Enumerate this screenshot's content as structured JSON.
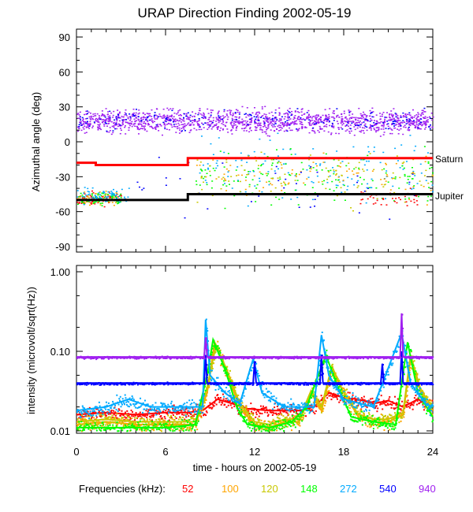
{
  "chart_data": [
    {
      "type": "scatter",
      "title": "URAP Direction Finding  2002-05-19",
      "ylabel": "Azimuthal angle (deg)",
      "ylim": [
        -95,
        95
      ],
      "xlim": [
        0,
        24
      ],
      "yticks": [
        "90",
        "60",
        "30",
        "0",
        "-30",
        "-60",
        "-90"
      ],
      "ytick_values": [
        90,
        60,
        30,
        0,
        -30,
        -60,
        -90
      ],
      "reference_lines": [
        {
          "name": "Saturn",
          "color": "#ff0000",
          "points": [
            [
              0,
              -18
            ],
            [
              1.3,
              -18
            ],
            [
              1.3,
              -20
            ],
            [
              7.5,
              -20
            ],
            [
              7.5,
              -14
            ],
            [
              24,
              -14
            ]
          ]
        },
        {
          "name": "Jupiter",
          "color": "#000000",
          "points": [
            [
              0,
              -50
            ],
            [
              7.5,
              -50
            ],
            [
              7.5,
              -45
            ],
            [
              24,
              -45
            ]
          ]
        }
      ],
      "clusters": [
        {
          "freq": "940",
          "t": [
            0,
            24
          ],
          "center": 18,
          "spread": 7,
          "count": 1400
        },
        {
          "freq": "540",
          "t": [
            0,
            24
          ],
          "center": 19,
          "spread": 6,
          "count": 200
        },
        {
          "freq": "52",
          "t": [
            0,
            3
          ],
          "center": -48,
          "spread": 4,
          "count": 60
        },
        {
          "freq": "100",
          "t": [
            0,
            3
          ],
          "center": -48,
          "spread": 4,
          "count": 60
        },
        {
          "freq": "148",
          "t": [
            0,
            3
          ],
          "center": -48,
          "spread": 4,
          "count": 70
        },
        {
          "freq": "272",
          "t": [
            0,
            3.5
          ],
          "center": -46,
          "spread": 5,
          "count": 70
        },
        {
          "freq": "272",
          "t": [
            8,
            24
          ],
          "center": -25,
          "spread": 18,
          "count": 150
        },
        {
          "freq": "148",
          "t": [
            8,
            24
          ],
          "center": -30,
          "spread": 16,
          "count": 150
        },
        {
          "freq": "100",
          "t": [
            8,
            24
          ],
          "center": -30,
          "spread": 16,
          "count": 100
        },
        {
          "freq": "120",
          "t": [
            8,
            24
          ],
          "center": -30,
          "spread": 16,
          "count": 100
        },
        {
          "freq": "52",
          "t": [
            19,
            23
          ],
          "center": -48,
          "spread": 5,
          "count": 40
        },
        {
          "freq": "540",
          "t": [
            4,
            24
          ],
          "center": -40,
          "spread": 20,
          "count": 40
        }
      ]
    },
    {
      "type": "line",
      "ylabel": "intensity (microvolt/sqrt(Hz))",
      "xlabel": "time - hours on 2002-05-19",
      "yscale": "log",
      "ylim": [
        0.01,
        1.0
      ],
      "xlim": [
        0,
        24
      ],
      "yticks": [
        "1.00",
        "0.10",
        "0.01"
      ],
      "ytick_values": [
        1.0,
        0.1,
        0.01
      ],
      "xticks": [
        "0",
        "6",
        "12",
        "18",
        "24"
      ],
      "xtick_values": [
        0,
        6,
        12,
        18,
        24
      ],
      "legend_title": "Frequencies (kHz):",
      "series": [
        {
          "name": "52",
          "color": "#ff0000",
          "points": [
            [
              0,
              0.016
            ],
            [
              2,
              0.017
            ],
            [
              4,
              0.016
            ],
            [
              6,
              0.017
            ],
            [
              7.5,
              0.017
            ],
            [
              8.5,
              0.018
            ],
            [
              9.5,
              0.025
            ],
            [
              10.5,
              0.022
            ],
            [
              11.5,
              0.019
            ],
            [
              13,
              0.018
            ],
            [
              15,
              0.018
            ],
            [
              16,
              0.02
            ],
            [
              17,
              0.03
            ],
            [
              18,
              0.026
            ],
            [
              19,
              0.025
            ],
            [
              20,
              0.022
            ],
            [
              21,
              0.024
            ],
            [
              22,
              0.02
            ],
            [
              23,
              0.025
            ],
            [
              24,
              0.02
            ]
          ]
        },
        {
          "name": "100",
          "color": "#ffa500",
          "points": [
            [
              0,
              0.012
            ],
            [
              2,
              0.013
            ],
            [
              4,
              0.012
            ],
            [
              6,
              0.012
            ],
            [
              8,
              0.012
            ],
            [
              8.8,
              0.03
            ],
            [
              9.3,
              0.13
            ],
            [
              10,
              0.06
            ],
            [
              11,
              0.02
            ],
            [
              12,
              0.012
            ],
            [
              13,
              0.011
            ],
            [
              14,
              0.013
            ],
            [
              15,
              0.013
            ],
            [
              15.8,
              0.03
            ],
            [
              16.5,
              0.018
            ],
            [
              17.2,
              0.06
            ],
            [
              18,
              0.03
            ],
            [
              19,
              0.015
            ],
            [
              20,
              0.013
            ],
            [
              21,
              0.013
            ],
            [
              22,
              0.016
            ],
            [
              22.5,
              0.08
            ],
            [
              23.2,
              0.03
            ],
            [
              24,
              0.018
            ]
          ]
        },
        {
          "name": "120",
          "color": "#c8c800",
          "points": [
            [
              0,
              0.013
            ],
            [
              2,
              0.014
            ],
            [
              4,
              0.013
            ],
            [
              6,
              0.013
            ],
            [
              8,
              0.013
            ],
            [
              8.8,
              0.035
            ],
            [
              9.4,
              0.12
            ],
            [
              10.1,
              0.06
            ],
            [
              11,
              0.022
            ],
            [
              12,
              0.013
            ],
            [
              13,
              0.012
            ],
            [
              14,
              0.014
            ],
            [
              15,
              0.014
            ],
            [
              15.8,
              0.032
            ],
            [
              16.5,
              0.02
            ],
            [
              17.2,
              0.065
            ],
            [
              18,
              0.03
            ],
            [
              19,
              0.016
            ],
            [
              20,
              0.014
            ],
            [
              21,
              0.014
            ],
            [
              22,
              0.017
            ],
            [
              22.5,
              0.09
            ],
            [
              23.2,
              0.032
            ],
            [
              24,
              0.02
            ]
          ]
        },
        {
          "name": "148",
          "color": "#00ff00",
          "points": [
            [
              0,
              0.011
            ],
            [
              3,
              0.011
            ],
            [
              6,
              0.011
            ],
            [
              8,
              0.012
            ],
            [
              8.8,
              0.05
            ],
            [
              9.2,
              0.14
            ],
            [
              10,
              0.06
            ],
            [
              10.8,
              0.02
            ],
            [
              11.5,
              0.012
            ],
            [
              13,
              0.011
            ],
            [
              14.5,
              0.013
            ],
            [
              15.5,
              0.02
            ],
            [
              16.8,
              0.09
            ],
            [
              17.5,
              0.04
            ],
            [
              18.5,
              0.015
            ],
            [
              20,
              0.013
            ],
            [
              21.5,
              0.012
            ],
            [
              22.3,
              0.13
            ],
            [
              23,
              0.03
            ],
            [
              24,
              0.015
            ]
          ]
        },
        {
          "name": "272",
          "color": "#00aaff",
          "points": [
            [
              0,
              0.018
            ],
            [
              2,
              0.02
            ],
            [
              3.5,
              0.025
            ],
            [
              5,
              0.02
            ],
            [
              7,
              0.02
            ],
            [
              8.5,
              0.02
            ],
            [
              8.7,
              0.25
            ],
            [
              9,
              0.05
            ],
            [
              10,
              0.03
            ],
            [
              11,
              0.022
            ],
            [
              11.9,
              0.08
            ],
            [
              12.5,
              0.03
            ],
            [
              14,
              0.02
            ],
            [
              16,
              0.02
            ],
            [
              16.5,
              0.16
            ],
            [
              17,
              0.05
            ],
            [
              18,
              0.025
            ],
            [
              20,
              0.02
            ],
            [
              21.9,
              0.17
            ],
            [
              22.5,
              0.04
            ],
            [
              23.5,
              0.022
            ],
            [
              24,
              0.02
            ]
          ]
        },
        {
          "name": "540",
          "color": "#0000ff",
          "points": [
            [
              0,
              0.04
            ],
            [
              8.6,
              0.04
            ],
            [
              8.7,
              0.09
            ],
            [
              8.8,
              0.04
            ],
            [
              11.9,
              0.04
            ],
            [
              12,
              0.075
            ],
            [
              12.1,
              0.04
            ],
            [
              16.4,
              0.04
            ],
            [
              16.5,
              0.09
            ],
            [
              16.6,
              0.04
            ],
            [
              20.5,
              0.04
            ],
            [
              20.6,
              0.07
            ],
            [
              20.7,
              0.04
            ],
            [
              21.8,
              0.04
            ],
            [
              21.9,
              0.1
            ],
            [
              22,
              0.04
            ],
            [
              24,
              0.04
            ]
          ]
        },
        {
          "name": "940",
          "color": "#a020f0",
          "points": [
            [
              0,
              0.085
            ],
            [
              8.6,
              0.085
            ],
            [
              8.7,
              0.15
            ],
            [
              8.8,
              0.085
            ],
            [
              21.8,
              0.085
            ],
            [
              21.9,
              0.3
            ],
            [
              22,
              0.085
            ],
            [
              24,
              0.085
            ]
          ]
        }
      ]
    }
  ]
}
